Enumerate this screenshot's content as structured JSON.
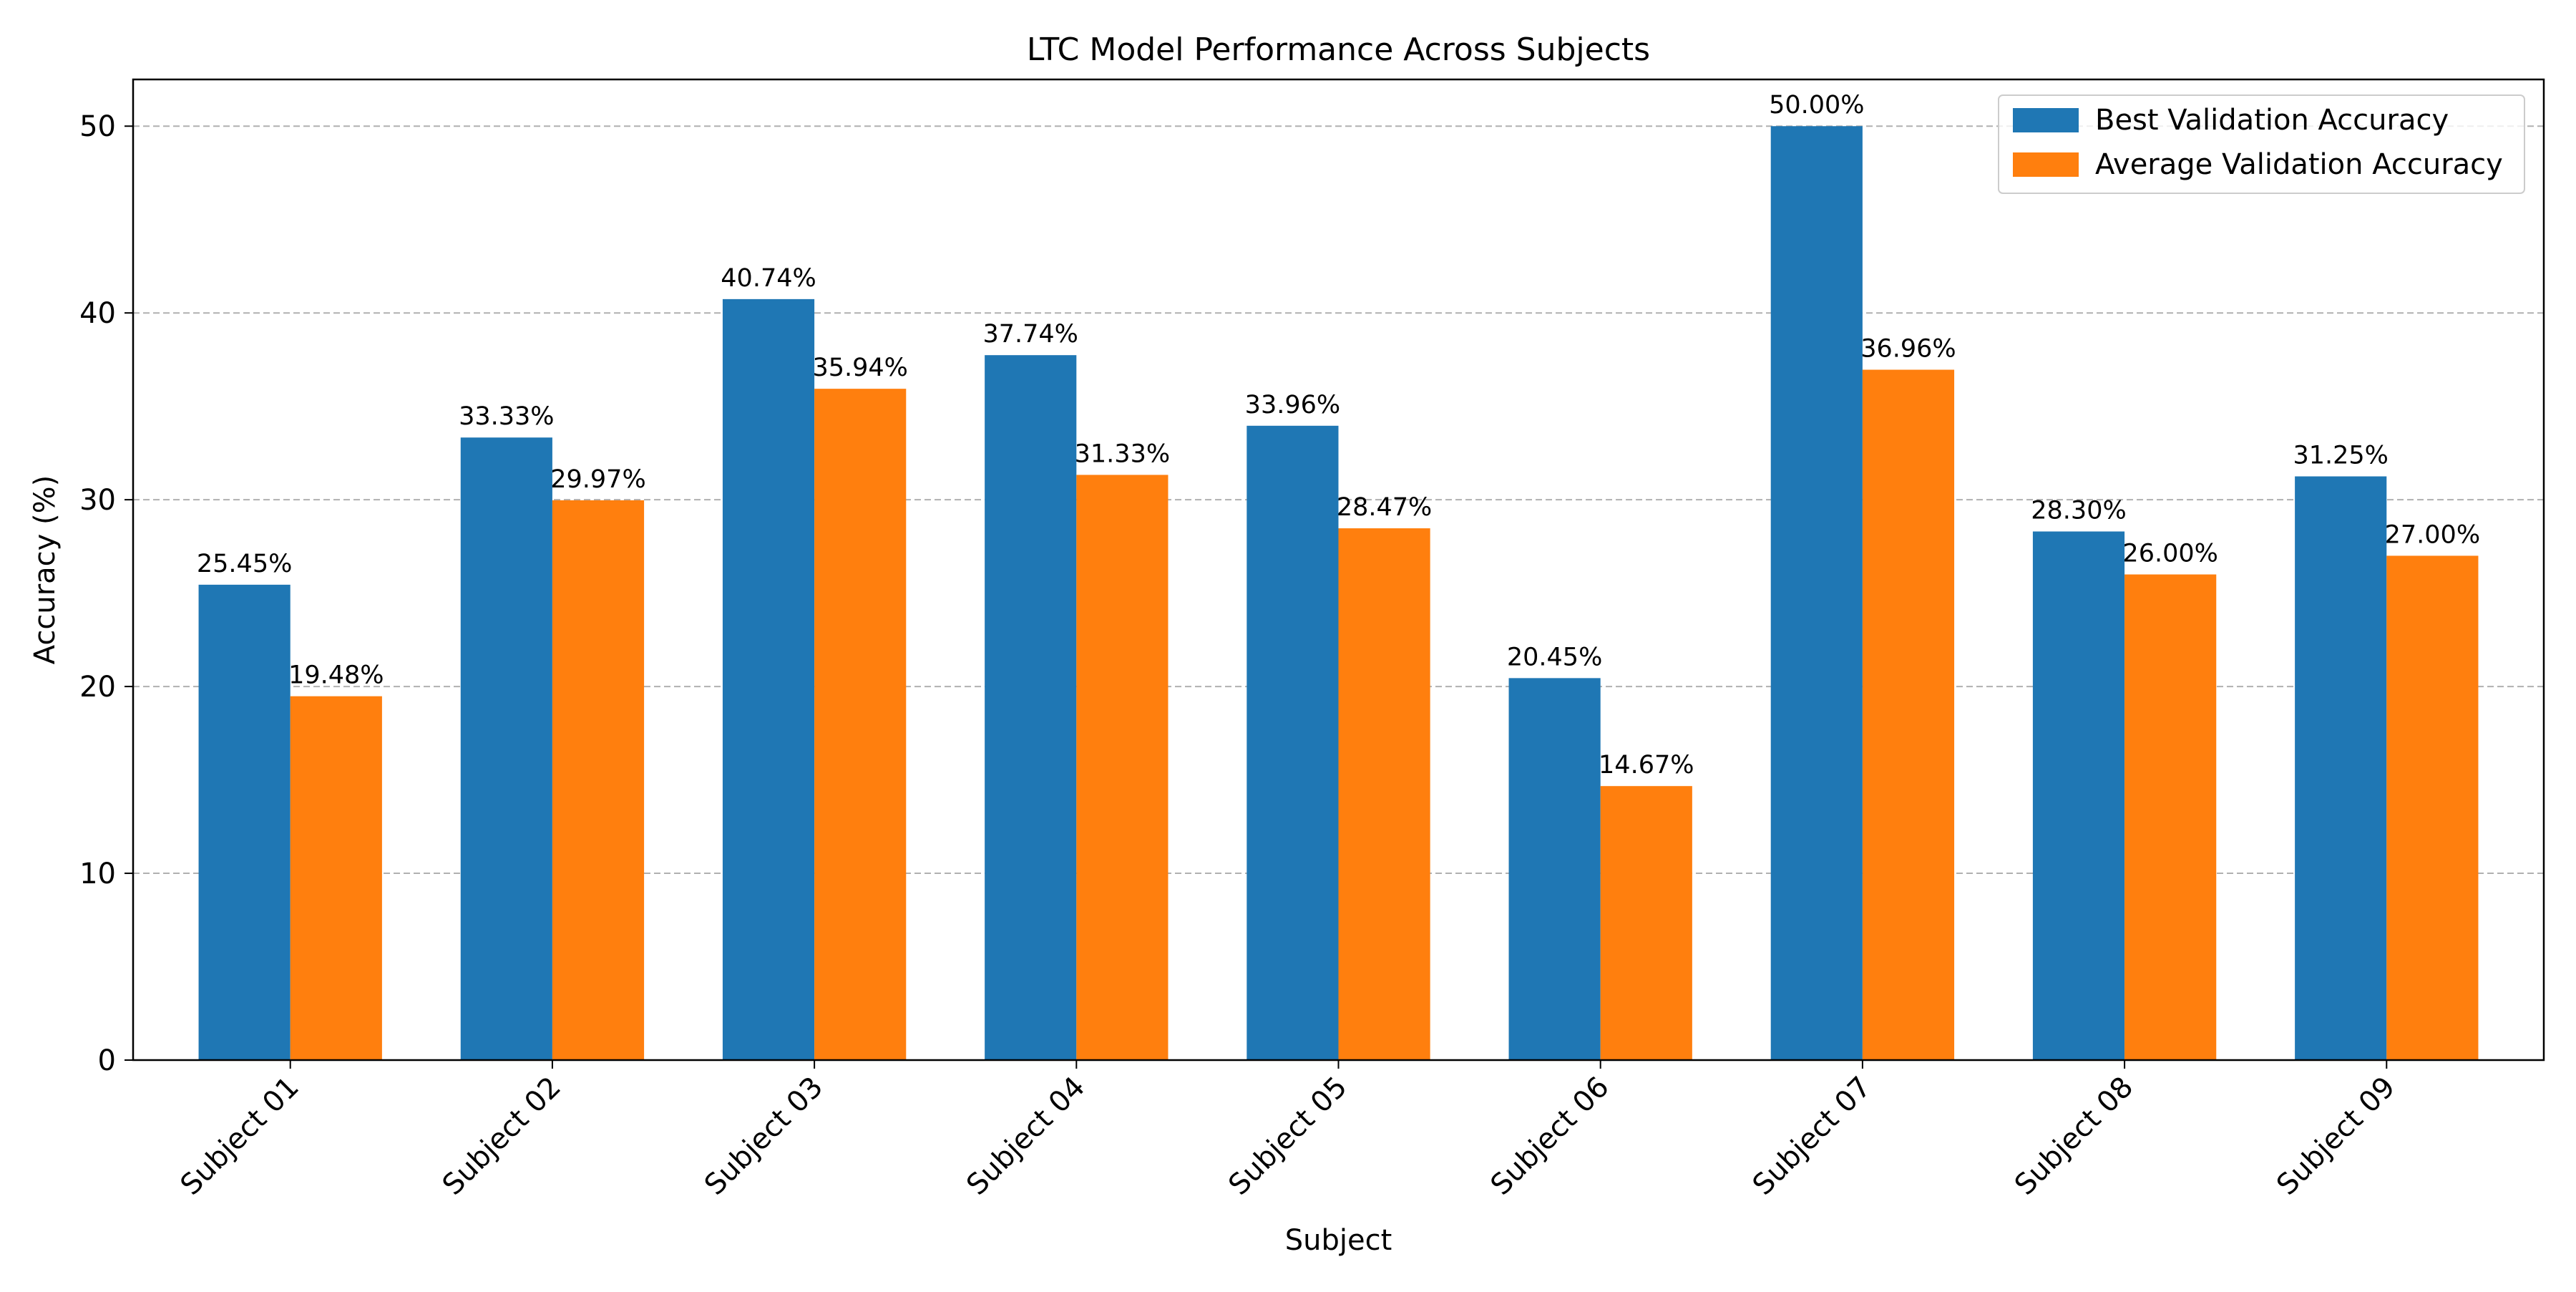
{
  "chart_data": {
    "type": "bar",
    "title": "LTC Model Performance Across Subjects",
    "xlabel": "Subject",
    "ylabel": "Accuracy (%)",
    "ylim": [
      0,
      52.5
    ],
    "yticks": [
      0,
      10,
      20,
      30,
      40,
      50
    ],
    "grid": "y, dashed",
    "legend_position": "top-right",
    "categories": [
      "Subject 01",
      "Subject 02",
      "Subject 03",
      "Subject 04",
      "Subject 05",
      "Subject 06",
      "Subject 07",
      "Subject 08",
      "Subject 09"
    ],
    "series": [
      {
        "name": "Best Validation Accuracy",
        "color": "#1f77b4",
        "values": [
          25.45,
          33.33,
          40.74,
          37.74,
          33.96,
          20.45,
          50.0,
          28.3,
          31.25
        ],
        "labels": [
          "25.45%",
          "33.33%",
          "40.74%",
          "37.74%",
          "33.96%",
          "20.45%",
          "50.00%",
          "28.30%",
          "31.25%"
        ]
      },
      {
        "name": "Average Validation Accuracy",
        "color": "#ff7f0e",
        "values": [
          19.48,
          29.97,
          35.94,
          31.33,
          28.47,
          14.67,
          36.96,
          26.0,
          27.0
        ],
        "labels": [
          "19.48%",
          "29.97%",
          "35.94%",
          "31.33%",
          "28.47%",
          "14.67%",
          "36.96%",
          "26.00%",
          "27.00%"
        ]
      }
    ]
  }
}
